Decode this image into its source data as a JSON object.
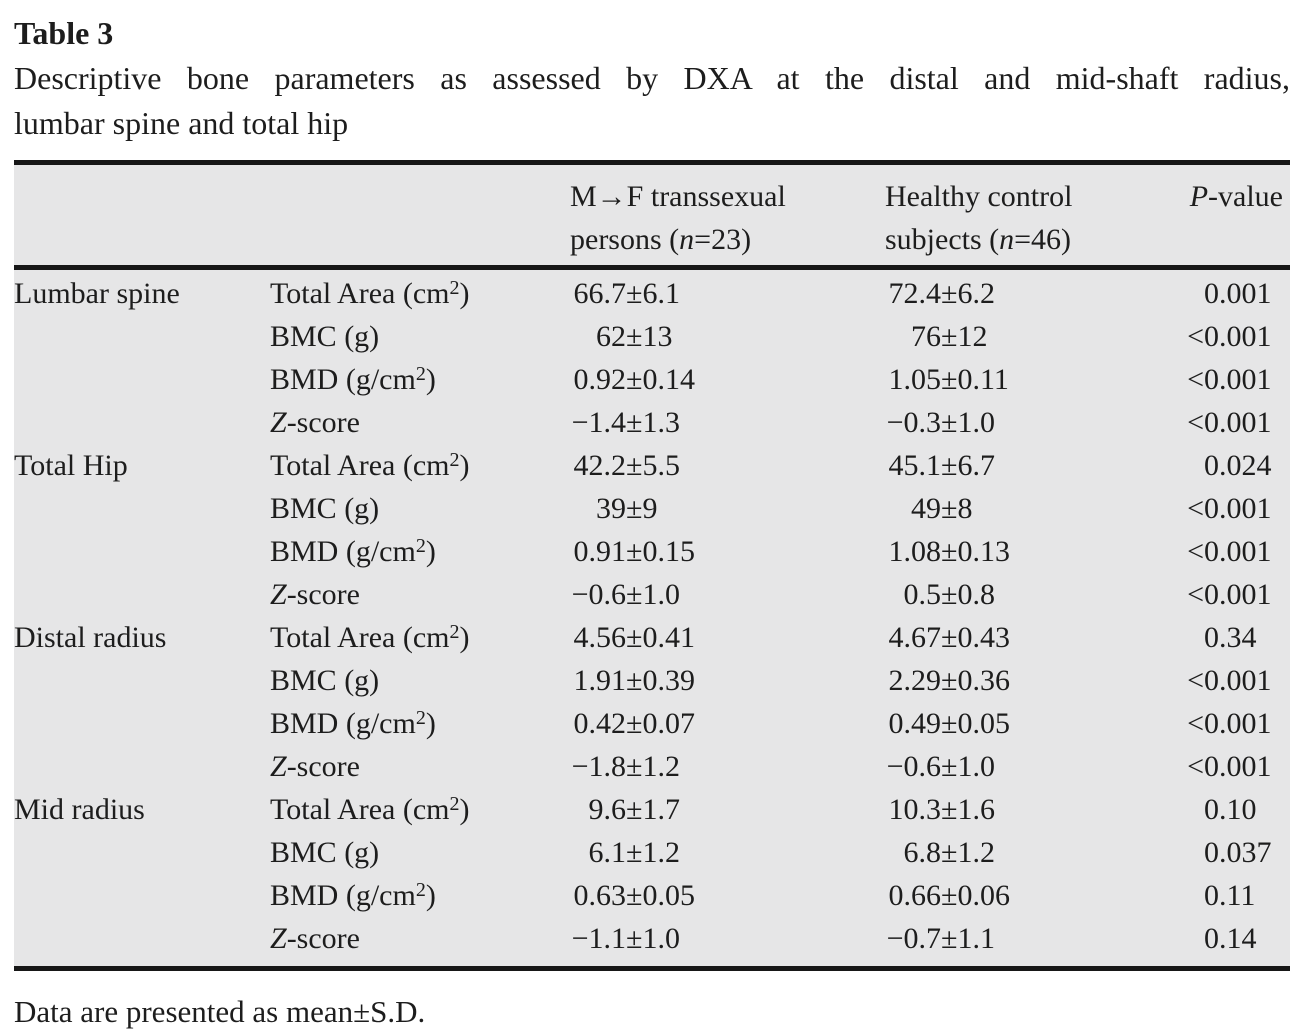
{
  "title": "Table 3",
  "caption_lines": [
    "Descriptive bone parameters as assessed by DXA at the distal and mid-shaft radius,",
    "lumbar spine and total hip"
  ],
  "columns": {
    "group1": {
      "line1": "M→F transsexual",
      "line2": [
        {
          "t": "persons ("
        },
        {
          "t": "n",
          "i": true
        },
        {
          "t": "=23)"
        }
      ]
    },
    "group2": {
      "line1": "Healthy control",
      "line2": [
        {
          "t": "subjects ("
        },
        {
          "t": "n",
          "i": true
        },
        {
          "t": "=46)"
        }
      ]
    },
    "pvalue": [
      {
        "t": "P",
        "i": true
      },
      {
        "t": "-value"
      }
    ]
  },
  "sections": [
    {
      "region": "Lumbar spine",
      "rows": [
        {
          "param": [
            {
              "t": "Total Area (cm"
            },
            {
              "t": "2",
              "sup": true
            },
            {
              "t": ")"
            }
          ],
          "g1": "66.7±6.1",
          "g2": "72.4±6.2",
          "p": "0.001"
        },
        {
          "param": [
            {
              "t": "BMC (g)"
            }
          ],
          "g1": "62±13",
          "g2": "76±12",
          "p": "<0.001"
        },
        {
          "param": [
            {
              "t": "BMD (g/cm"
            },
            {
              "t": "2",
              "sup": true
            },
            {
              "t": ")"
            }
          ],
          "g1": "0.92±0.14",
          "g2": "1.05±0.11",
          "p": "<0.001"
        },
        {
          "param": [
            {
              "t": "Z",
              "i": true
            },
            {
              "t": "-score"
            }
          ],
          "g1": "−1.4±1.3",
          "g2": "−0.3±1.0",
          "p": "<0.001"
        }
      ]
    },
    {
      "region": "Total Hip",
      "rows": [
        {
          "param": [
            {
              "t": "Total Area (cm"
            },
            {
              "t": "2",
              "sup": true
            },
            {
              "t": ")"
            }
          ],
          "g1": "42.2±5.5",
          "g2": "45.1±6.7",
          "p": "0.024"
        },
        {
          "param": [
            {
              "t": "BMC (g)"
            }
          ],
          "g1": "39±9",
          "g2": "49±8",
          "p": "<0.001"
        },
        {
          "param": [
            {
              "t": "BMD (g/cm"
            },
            {
              "t": "2",
              "sup": true
            },
            {
              "t": ")"
            }
          ],
          "g1": "0.91±0.15",
          "g2": "1.08±0.13",
          "p": "<0.001"
        },
        {
          "param": [
            {
              "t": "Z",
              "i": true
            },
            {
              "t": "-score"
            }
          ],
          "g1": "−0.6±1.0",
          "g2": "0.5±0.8",
          "p": "<0.001"
        }
      ]
    },
    {
      "region": "Distal radius",
      "rows": [
        {
          "param": [
            {
              "t": "Total Area (cm"
            },
            {
              "t": "2",
              "sup": true
            },
            {
              "t": ")"
            }
          ],
          "g1": "4.56±0.41",
          "g2": "4.67±0.43",
          "p": "0.34"
        },
        {
          "param": [
            {
              "t": "BMC (g)"
            }
          ],
          "g1": "1.91±0.39",
          "g2": "2.29±0.36",
          "p": "<0.001"
        },
        {
          "param": [
            {
              "t": "BMD (g/cm"
            },
            {
              "t": "2",
              "sup": true
            },
            {
              "t": ")"
            }
          ],
          "g1": "0.42±0.07",
          "g2": "0.49±0.05",
          "p": "<0.001"
        },
        {
          "param": [
            {
              "t": "Z",
              "i": true
            },
            {
              "t": "-score"
            }
          ],
          "g1": "−1.8±1.2",
          "g2": "−0.6±1.0",
          "p": "<0.001"
        }
      ]
    },
    {
      "region": "Mid radius",
      "rows": [
        {
          "param": [
            {
              "t": "Total Area (cm"
            },
            {
              "t": "2",
              "sup": true
            },
            {
              "t": ")"
            }
          ],
          "g1": "9.6±1.7",
          "g2": "10.3±1.6",
          "p": "0.10"
        },
        {
          "param": [
            {
              "t": "BMC (g)"
            }
          ],
          "g1": "6.1±1.2",
          "g2": "6.8±1.2",
          "p": "0.037"
        },
        {
          "param": [
            {
              "t": "BMD (g/cm"
            },
            {
              "t": "2",
              "sup": true
            },
            {
              "t": ")"
            }
          ],
          "g1": "0.63±0.05",
          "g2": "0.66±0.06",
          "p": "0.11"
        },
        {
          "param": [
            {
              "t": "Z",
              "i": true
            },
            {
              "t": "-score"
            }
          ],
          "g1": "−1.1±1.0",
          "g2": "−0.7±1.1",
          "p": "0.14"
        }
      ]
    }
  ],
  "footnote": "Data are presented as mean±S.D.",
  "colors": {
    "table_background": "#e6e6e7",
    "rule": "#171717",
    "text": "#1d1d1d",
    "page_background": "#ffffff"
  }
}
